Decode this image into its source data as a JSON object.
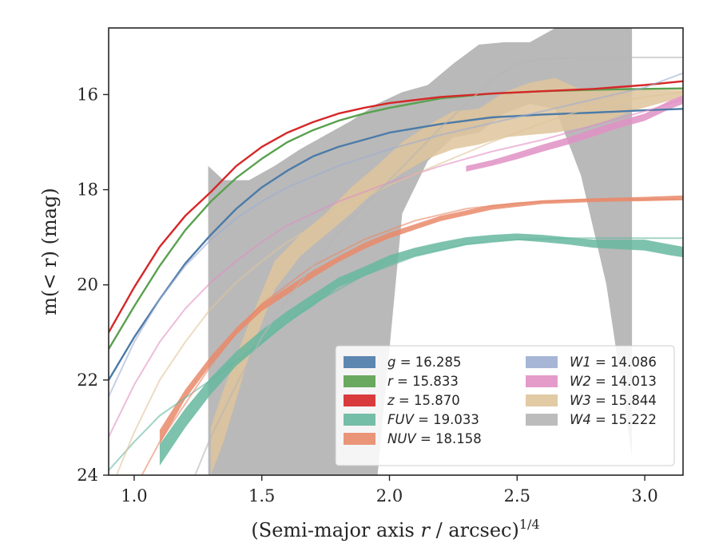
{
  "chart_data": {
    "type": "line",
    "xlabel": "(Semi-major axis r / arcsec)",
    "xlabel_var": "r",
    "xlabel_sup": "1/4",
    "ylabel": "m(< r) (mag)",
    "xlim": [
      0.9,
      3.15
    ],
    "ylim": [
      24,
      14.6
    ],
    "y_inverted": true,
    "xticks": [
      1.0,
      1.5,
      2.0,
      2.5,
      3.0
    ],
    "xtick_labels": [
      "1.0",
      "1.5",
      "2.0",
      "2.5",
      "3.0"
    ],
    "yticks": [
      16,
      18,
      20,
      22,
      24
    ],
    "ytick_labels": [
      "16",
      "18",
      "20",
      "22",
      "24"
    ],
    "grid": false,
    "legend_position": "lower-right",
    "series": [
      {
        "name": "g",
        "value": "16.285",
        "color": "#4c7ba8",
        "model_x": [
          0.9,
          1.0,
          1.1,
          1.2,
          1.3,
          1.4,
          1.5,
          1.6,
          1.7,
          1.8,
          1.9,
          2.0,
          2.2,
          2.4,
          2.6,
          2.8,
          3.0,
          3.15
        ],
        "model_y": [
          22.0,
          21.1,
          20.3,
          19.55,
          18.95,
          18.4,
          17.95,
          17.6,
          17.3,
          17.1,
          16.95,
          16.8,
          16.62,
          16.48,
          16.42,
          16.38,
          16.33,
          16.3
        ],
        "data_x": [],
        "data_lo": [],
        "data_hi": []
      },
      {
        "name": "r",
        "value": "15.833",
        "color": "#59a14f",
        "model_x": [
          0.9,
          1.0,
          1.1,
          1.2,
          1.3,
          1.4,
          1.5,
          1.6,
          1.7,
          1.8,
          1.9,
          2.0,
          2.2,
          2.4,
          2.6,
          2.8,
          3.0,
          3.15
        ],
        "model_y": [
          21.35,
          20.45,
          19.6,
          18.85,
          18.25,
          17.75,
          17.35,
          17.0,
          16.75,
          16.55,
          16.4,
          16.28,
          16.08,
          15.98,
          15.93,
          15.9,
          15.88,
          15.87
        ],
        "data_x": [],
        "data_lo": [],
        "data_hi": []
      },
      {
        "name": "z",
        "value": "15.870",
        "color": "#d62728",
        "model_x": [
          0.9,
          1.0,
          1.1,
          1.2,
          1.3,
          1.4,
          1.5,
          1.6,
          1.7,
          1.8,
          1.9,
          2.0,
          2.2,
          2.4,
          2.6,
          2.8,
          3.0,
          3.15
        ],
        "model_y": [
          21.0,
          20.05,
          19.2,
          18.55,
          18.05,
          17.5,
          17.1,
          16.8,
          16.58,
          16.4,
          16.28,
          16.18,
          16.05,
          15.98,
          15.93,
          15.88,
          15.8,
          15.72
        ],
        "data_x": [],
        "data_lo": [],
        "data_hi": []
      },
      {
        "name": "FUV",
        "value": "19.033",
        "color": "#66b79f",
        "model_x": [
          0.9,
          1.0,
          1.1,
          1.3,
          1.5,
          1.7,
          1.9,
          2.1,
          2.3,
          2.5,
          2.7,
          2.9,
          3.15
        ],
        "model_y": [
          23.9,
          23.3,
          22.75,
          22.0,
          21.2,
          20.4,
          19.8,
          19.4,
          19.15,
          19.05,
          19.02,
          19.02,
          19.02
        ],
        "data_x": [
          1.1,
          1.2,
          1.3,
          1.4,
          1.5,
          1.6,
          1.7,
          1.8,
          1.9,
          2.0,
          2.1,
          2.2,
          2.3,
          2.4,
          2.5,
          2.6,
          2.7,
          2.8,
          2.9,
          3.0,
          3.1,
          3.15
        ],
        "data_lo": [
          23.35,
          22.6,
          21.95,
          21.4,
          20.95,
          20.55,
          20.2,
          19.85,
          19.62,
          19.38,
          19.22,
          19.1,
          19.0,
          18.95,
          18.92,
          18.95,
          19.0,
          19.05,
          19.05,
          19.05,
          19.15,
          19.2
        ],
        "data_hi": [
          23.8,
          23.0,
          22.3,
          21.7,
          21.25,
          20.8,
          20.45,
          20.05,
          19.82,
          19.58,
          19.4,
          19.28,
          19.16,
          19.1,
          19.06,
          19.1,
          19.15,
          19.22,
          19.25,
          19.28,
          19.38,
          19.42
        ]
      },
      {
        "name": "NUV",
        "value": "18.158",
        "color": "#e9896a",
        "model_x": [
          1.0,
          1.1,
          1.2,
          1.3,
          1.4,
          1.5,
          1.7,
          1.9,
          2.1,
          2.3,
          2.5,
          2.7,
          2.9,
          3.15
        ],
        "model_y": [
          24.3,
          23.3,
          22.5,
          21.7,
          21.0,
          20.4,
          19.6,
          19.05,
          18.65,
          18.4,
          18.28,
          18.22,
          18.2,
          18.2
        ],
        "data_x": [
          1.1,
          1.2,
          1.3,
          1.4,
          1.5,
          1.6,
          1.7,
          1.8,
          1.9,
          2.0,
          2.2,
          2.4,
          2.6,
          2.8,
          3.0,
          3.15
        ],
        "data_lo": [
          23.05,
          22.2,
          21.5,
          20.9,
          20.4,
          20.05,
          19.7,
          19.4,
          19.12,
          18.9,
          18.55,
          18.32,
          18.22,
          18.18,
          18.15,
          18.12
        ],
        "data_hi": [
          23.35,
          22.4,
          21.68,
          21.05,
          20.55,
          20.2,
          19.85,
          19.52,
          19.25,
          19.02,
          18.66,
          18.42,
          18.3,
          18.26,
          18.24,
          18.22
        ]
      },
      {
        "name": "W1",
        "value": "14.086",
        "color": "#9daed2",
        "model_x": [
          0.9,
          1.0,
          1.1,
          1.2,
          1.3,
          1.4,
          1.5,
          1.6,
          1.8,
          2.0,
          2.2,
          2.4,
          2.6,
          2.8,
          3.0,
          3.15
        ],
        "model_y": [
          22.35,
          21.2,
          20.3,
          19.6,
          19.05,
          18.6,
          18.25,
          17.95,
          17.5,
          17.15,
          16.85,
          16.6,
          16.35,
          16.1,
          15.85,
          15.55
        ],
        "data_x": [],
        "data_lo": [],
        "data_hi": []
      },
      {
        "name": "W2",
        "value": "14.013",
        "color": "#e190c4",
        "model_x": [
          0.9,
          1.0,
          1.1,
          1.2,
          1.3,
          1.4,
          1.5,
          1.6,
          1.8,
          2.0,
          2.2,
          2.4,
          2.6,
          2.8,
          3.0,
          3.15
        ],
        "model_y": [
          23.2,
          22.1,
          21.2,
          20.5,
          19.95,
          19.5,
          19.1,
          18.75,
          18.25,
          17.85,
          17.5,
          17.2,
          16.95,
          16.65,
          16.35,
          16.1
        ],
        "data_x": [
          2.3,
          2.4,
          2.5,
          2.6,
          2.7,
          2.8,
          2.9,
          3.0,
          3.1,
          3.15
        ],
        "data_lo": [
          17.5,
          17.38,
          17.22,
          17.05,
          16.9,
          16.72,
          16.55,
          16.4,
          16.12,
          16.02
        ],
        "data_hi": [
          17.62,
          17.5,
          17.36,
          17.2,
          17.05,
          16.88,
          16.7,
          16.55,
          16.3,
          16.2
        ]
      },
      {
        "name": "W3",
        "value": "15.844",
        "color": "#dfc49b",
        "model_x": [
          0.9,
          1.0,
          1.1,
          1.2,
          1.3,
          1.4,
          1.5,
          1.6,
          1.8,
          2.0,
          2.2,
          2.4,
          2.6,
          2.8,
          3.0,
          3.15
        ],
        "model_y": [
          24.4,
          23.1,
          22.0,
          21.2,
          20.5,
          19.95,
          19.5,
          19.1,
          18.45,
          17.9,
          17.45,
          17.0,
          16.6,
          16.25,
          16.05,
          15.95
        ],
        "data_x": [
          1.3,
          1.35,
          1.45,
          1.55,
          1.65,
          1.75,
          1.85,
          1.95,
          2.05,
          2.15,
          2.25,
          2.35,
          2.45,
          2.55,
          2.65,
          2.75,
          2.85,
          2.95,
          3.05,
          3.15
        ],
        "data_lo": [
          24.0,
          23.3,
          21.5,
          20.1,
          19.4,
          18.95,
          18.5,
          18.0,
          17.65,
          17.35,
          17.15,
          17.05,
          16.9,
          16.85,
          16.8,
          16.7,
          16.55,
          16.35,
          16.2,
          16.05
        ],
        "data_hi": [
          23.0,
          22.2,
          20.8,
          19.5,
          18.95,
          18.5,
          17.95,
          17.5,
          17.0,
          16.65,
          16.35,
          16.3,
          15.95,
          15.75,
          15.65,
          15.9,
          15.9,
          15.9,
          15.9,
          15.9
        ]
      },
      {
        "name": "W4",
        "value": "15.222",
        "color": "#b5b5b5",
        "model_x": [
          1.2,
          1.3,
          1.4,
          1.5,
          1.6,
          1.8,
          2.0,
          2.2,
          2.4,
          2.5,
          2.6,
          2.8,
          3.0,
          3.15
        ],
        "model_y": [
          24.5,
          23.2,
          22.1,
          21.1,
          20.3,
          18.9,
          17.8,
          16.7,
          15.7,
          15.35,
          15.25,
          15.22,
          15.22,
          15.22
        ],
        "data_x": [
          1.29,
          1.35,
          1.45,
          1.55,
          1.65,
          1.75,
          1.85,
          1.95,
          2.05,
          2.15,
          2.25,
          2.35,
          2.45,
          2.55,
          2.65,
          2.75,
          2.85,
          2.95
        ],
        "data_lo": [
          24.2,
          24.2,
          24.2,
          24.2,
          24.2,
          24.2,
          24.2,
          24.2,
          18.5,
          17.4,
          16.9,
          16.8,
          16.4,
          16.2,
          16.3,
          17.7,
          20.0,
          23.6
        ],
        "data_hi": [
          17.5,
          17.8,
          17.8,
          17.5,
          17.15,
          16.85,
          16.55,
          16.2,
          15.95,
          15.8,
          15.35,
          14.95,
          14.9,
          14.9,
          14.6,
          14.6,
          14.6,
          14.6
        ]
      }
    ]
  }
}
